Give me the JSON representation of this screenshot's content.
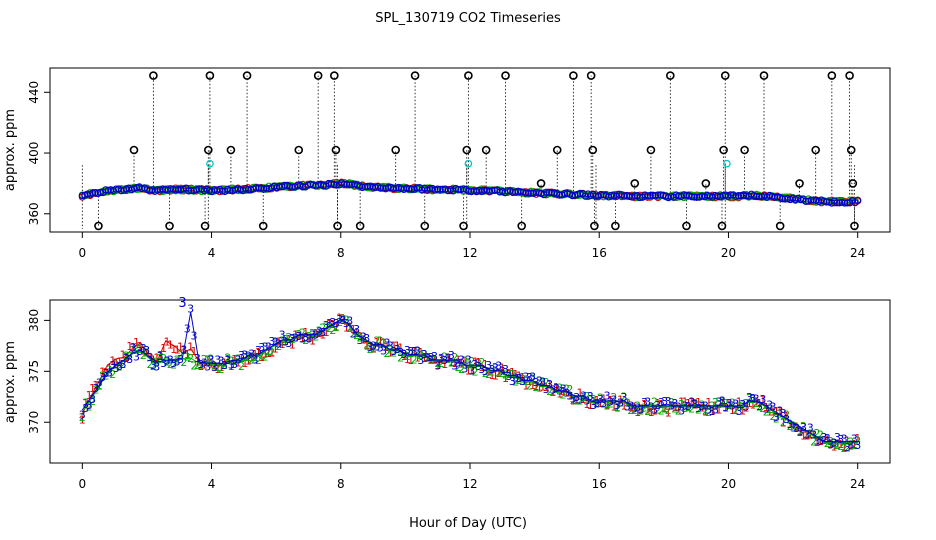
{
  "chart_data": [
    {
      "type": "scatter",
      "title": "SPL_130719  CO2 Timeseries",
      "xlabel": "",
      "ylabel": "approx. ppm",
      "xlim": [
        -1,
        25
      ],
      "ylim": [
        348,
        456
      ],
      "xticks": [
        "0",
        "4",
        "8",
        "12",
        "16",
        "20",
        "24"
      ],
      "yticks": [
        "360",
        "400",
        "440"
      ],
      "baseline": [
        372,
        373,
        374,
        375,
        375.5,
        376,
        376.5,
        377,
        376,
        375.5,
        375.5,
        376,
        376,
        376,
        375.5,
        375.5,
        375.5,
        375.5,
        376,
        376,
        376.5,
        376.5,
        377,
        377.5,
        378,
        378,
        378.5,
        378.5,
        378.5,
        379,
        379.5,
        380,
        379.5,
        378.5,
        378,
        377.5,
        377.5,
        377,
        377,
        376.5,
        376.5,
        376.5,
        376,
        376,
        376,
        376,
        375.5,
        375.5,
        375.5,
        375,
        375,
        374.5,
        374.5,
        374,
        374,
        373.5,
        373.5,
        373,
        373,
        372.5,
        372.5,
        372,
        372,
        372,
        372,
        372,
        371.5,
        371.5,
        371.5,
        371.5,
        371.5,
        371.5,
        371.5,
        371.5,
        371.5,
        371.5,
        371.5,
        371.5,
        371.5,
        371.5,
        372,
        372,
        371.5,
        371,
        370.5,
        370,
        369.5,
        369,
        368.5,
        368,
        368,
        368,
        368,
        368
      ],
      "spikes": [
        {
          "x": 0.5,
          "y": 352
        },
        {
          "x": 1.6,
          "y": 402
        },
        {
          "x": 2.2,
          "y": 451
        },
        {
          "x": 2.7,
          "y": 352
        },
        {
          "x": 3.8,
          "y": 352
        },
        {
          "x": 3.9,
          "y": 402
        },
        {
          "x": 3.95,
          "y": 451
        },
        {
          "x": 4.6,
          "y": 402
        },
        {
          "x": 5.1,
          "y": 451
        },
        {
          "x": 5.6,
          "y": 352
        },
        {
          "x": 6.7,
          "y": 402
        },
        {
          "x": 7.3,
          "y": 451
        },
        {
          "x": 7.8,
          "y": 451
        },
        {
          "x": 7.85,
          "y": 402
        },
        {
          "x": 7.9,
          "y": 352
        },
        {
          "x": 8.6,
          "y": 352
        },
        {
          "x": 9.7,
          "y": 402
        },
        {
          "x": 10.3,
          "y": 451
        },
        {
          "x": 10.6,
          "y": 352
        },
        {
          "x": 11.8,
          "y": 352
        },
        {
          "x": 11.9,
          "y": 402
        },
        {
          "x": 11.95,
          "y": 451
        },
        {
          "x": 12.5,
          "y": 402
        },
        {
          "x": 13.1,
          "y": 451
        },
        {
          "x": 13.6,
          "y": 352
        },
        {
          "x": 14.2,
          "y": 380
        },
        {
          "x": 14.7,
          "y": 402
        },
        {
          "x": 15.2,
          "y": 451
        },
        {
          "x": 15.75,
          "y": 451
        },
        {
          "x": 15.8,
          "y": 402
        },
        {
          "x": 15.85,
          "y": 352
        },
        {
          "x": 16.5,
          "y": 352
        },
        {
          "x": 17.1,
          "y": 380
        },
        {
          "x": 17.6,
          "y": 402
        },
        {
          "x": 18.2,
          "y": 451
        },
        {
          "x": 18.7,
          "y": 352
        },
        {
          "x": 19.3,
          "y": 380
        },
        {
          "x": 19.8,
          "y": 352
        },
        {
          "x": 19.85,
          "y": 402
        },
        {
          "x": 19.9,
          "y": 451
        },
        {
          "x": 20.5,
          "y": 402
        },
        {
          "x": 21.1,
          "y": 451
        },
        {
          "x": 21.6,
          "y": 352
        },
        {
          "x": 22.2,
          "y": 380
        },
        {
          "x": 22.7,
          "y": 402
        },
        {
          "x": 23.2,
          "y": 451
        },
        {
          "x": 23.75,
          "y": 451
        },
        {
          "x": 23.8,
          "y": 402
        },
        {
          "x": 23.85,
          "y": 380
        },
        {
          "x": 23.9,
          "y": 352
        }
      ],
      "cyan_points": [
        {
          "x": 3.95,
          "y": 393
        },
        {
          "x": 11.95,
          "y": 393
        },
        {
          "x": 19.95,
          "y": 393
        }
      ]
    },
    {
      "type": "scatter",
      "title": "",
      "xlabel": "Hour of Day (UTC)",
      "ylabel": "approx. ppm",
      "xlim": [
        -1,
        25
      ],
      "ylim": [
        366,
        382
      ],
      "xticks": [
        "0",
        "4",
        "8",
        "12",
        "16",
        "20",
        "24"
      ],
      "yticks": [
        "370",
        "375",
        "380"
      ],
      "series": [
        {
          "name": "1",
          "color": "#dd0000",
          "values": [
            370.8,
            372.5,
            374,
            375.6,
            376.2,
            376.4,
            377.2,
            377.8,
            376.5,
            376,
            378,
            377.5,
            376.8,
            377.2,
            376,
            375.6,
            375.6,
            375.6,
            376,
            376,
            376.5,
            376.5,
            377,
            377.5,
            378,
            378,
            378.5,
            378.5,
            378.5,
            379,
            379.5,
            380,
            379.5,
            378.5,
            378,
            377.5,
            377.5,
            377,
            377,
            376.5,
            376.5,
            376.5,
            376,
            376,
            376,
            376,
            375.5,
            375.5,
            375.5,
            375,
            375,
            374.5,
            374.5,
            374,
            374,
            373.5,
            373.5,
            373,
            373,
            372.5,
            372.5,
            372,
            372,
            372,
            372,
            372,
            371.5,
            371.5,
            371.5,
            371.5,
            371.5,
            371.5,
            371.5,
            371.5,
            371.5,
            371.5,
            371.5,
            371.5,
            371.5,
            371.5,
            372,
            372,
            371.5,
            371,
            370.5,
            370,
            369.5,
            369,
            368.5,
            368,
            368,
            368,
            368,
            368
          ]
        },
        {
          "name": "2",
          "color": "#00aa00",
          "values": [
            371,
            372.2,
            373.5,
            374.8,
            375.5,
            376,
            376.7,
            377,
            376.3,
            375.8,
            376,
            376,
            376.2,
            376.3,
            375.8,
            375.7,
            375.7,
            375.7,
            376,
            376,
            376.5,
            376.5,
            377,
            377.5,
            378,
            378,
            378.5,
            378.5,
            378.5,
            379,
            379.5,
            380,
            379.5,
            378.5,
            378,
            377.5,
            377.5,
            377,
            377,
            376.5,
            376.5,
            376.5,
            376,
            376,
            376,
            376,
            375.5,
            375.5,
            375.5,
            375,
            375,
            374.5,
            374.5,
            374,
            374,
            373.5,
            373.5,
            373,
            373,
            372.5,
            372.5,
            372,
            372,
            372,
            372,
            372,
            371.5,
            371.5,
            371.5,
            371.5,
            371.5,
            371.5,
            371.5,
            371.5,
            371.5,
            371.5,
            371.5,
            371.5,
            371.5,
            371.5,
            372,
            372,
            371.5,
            371,
            370.5,
            370,
            369.5,
            369,
            368.5,
            368,
            368,
            368,
            368,
            368
          ]
        },
        {
          "name": "3",
          "color": "#0000cc",
          "values": [
            371.2,
            372.4,
            373.6,
            374.9,
            375.6,
            376.1,
            376.8,
            377.1,
            376.4,
            375.9,
            376.1,
            376.1,
            376.3,
            380.8,
            375.9,
            375.8,
            375.8,
            375.8,
            376.1,
            376.1,
            376.6,
            376.6,
            377.1,
            377.6,
            378.1,
            378.1,
            378.6,
            378.6,
            378.6,
            379.1,
            379.6,
            380.1,
            379.6,
            378.6,
            378.1,
            377.6,
            377.6,
            377.1,
            377.1,
            376.6,
            376.6,
            376.6,
            376.1,
            376.1,
            376.1,
            376.1,
            375.6,
            375.6,
            375.6,
            375.1,
            375.1,
            374.6,
            374.6,
            374.1,
            374.1,
            373.6,
            373.6,
            373.1,
            373.1,
            372.6,
            372.6,
            372.1,
            372.1,
            372.1,
            372.1,
            372.1,
            371.6,
            371.6,
            371.6,
            371.6,
            371.6,
            371.6,
            371.6,
            371.6,
            371.6,
            371.6,
            371.6,
            371.6,
            371.6,
            371.6,
            372.1,
            372.1,
            371.6,
            371.1,
            370.6,
            370.1,
            369.6,
            369.1,
            368.6,
            368.1,
            368.1,
            368.1,
            368.1,
            368.1
          ]
        }
      ],
      "annotation": "3"
    }
  ]
}
